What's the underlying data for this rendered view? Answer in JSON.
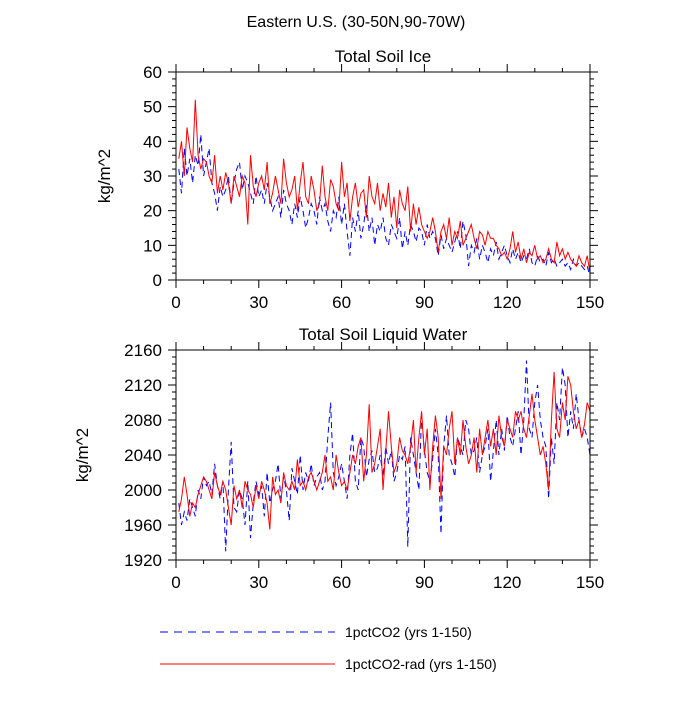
{
  "figure": {
    "title": "Eastern U.S. (30-50N,90-70W)"
  },
  "legend": {
    "placement": "bottom",
    "entries": [
      {
        "name": "1pctCO2 (yrs 1-150)",
        "color": "#0000ff",
        "style": "dashed"
      },
      {
        "name": "1pctCO2-rad (yrs 1-150)",
        "color": "#ff0000",
        "style": "solid"
      }
    ]
  },
  "chart_data": [
    {
      "type": "line",
      "title": "Total Soil Ice",
      "xlabel": "",
      "ylabel": "kg/m^2",
      "xlim": [
        0,
        150
      ],
      "ylim": [
        0,
        60
      ],
      "xticks": [
        0,
        30,
        60,
        90,
        120,
        150
      ],
      "yticks": [
        0,
        10,
        20,
        30,
        40,
        50,
        60
      ],
      "grid": false,
      "x": [
        1,
        2,
        3,
        4,
        5,
        6,
        7,
        8,
        9,
        10,
        11,
        12,
        13,
        14,
        15,
        16,
        17,
        18,
        19,
        20,
        21,
        22,
        23,
        24,
        25,
        26,
        27,
        28,
        29,
        30,
        31,
        32,
        33,
        34,
        35,
        36,
        37,
        38,
        39,
        40,
        41,
        42,
        43,
        44,
        45,
        46,
        47,
        48,
        49,
        50,
        51,
        52,
        53,
        54,
        55,
        56,
        57,
        58,
        59,
        60,
        61,
        62,
        63,
        64,
        65,
        66,
        67,
        68,
        69,
        70,
        71,
        72,
        73,
        74,
        75,
        76,
        77,
        78,
        79,
        80,
        81,
        82,
        83,
        84,
        85,
        86,
        87,
        88,
        89,
        90,
        91,
        92,
        93,
        94,
        95,
        96,
        97,
        98,
        99,
        100,
        101,
        102,
        103,
        104,
        105,
        106,
        107,
        108,
        109,
        110,
        111,
        112,
        113,
        114,
        115,
        116,
        117,
        118,
        119,
        120,
        121,
        122,
        123,
        124,
        125,
        126,
        127,
        128,
        129,
        130,
        131,
        132,
        133,
        134,
        135,
        136,
        137,
        138,
        139,
        140,
        141,
        142,
        143,
        144,
        145,
        146,
        147,
        148,
        149,
        150
      ],
      "series": [
        {
          "name": "1pctCO2 (yrs 1-150)",
          "color": "#0000ff",
          "style": "dashed",
          "values": [
            32,
            25,
            38,
            30,
            35,
            28,
            36,
            33,
            42,
            30,
            34,
            38,
            28,
            25,
            20,
            27,
            24,
            26,
            30,
            22,
            28,
            32,
            34,
            26,
            30,
            28,
            25,
            22,
            30,
            24,
            26,
            22,
            28,
            24,
            20,
            22,
            24,
            18,
            26,
            22,
            20,
            16,
            22,
            18,
            24,
            20,
            15,
            18,
            22,
            20,
            16,
            24,
            20,
            22,
            17,
            14,
            20,
            18,
            24,
            16,
            22,
            14,
            7,
            18,
            14,
            20,
            12,
            16,
            22,
            14,
            18,
            10,
            16,
            14,
            18,
            12,
            10,
            16,
            14,
            12,
            18,
            9,
            14,
            10,
            16,
            14,
            11,
            15,
            14,
            10,
            16,
            12,
            14,
            12,
            7,
            13,
            9,
            12,
            10,
            8,
            11,
            14,
            9,
            17,
            13,
            4,
            10,
            8,
            12,
            6,
            10,
            8,
            5,
            9,
            7,
            11,
            6,
            8,
            10,
            7,
            5,
            9,
            6,
            8,
            5,
            7,
            6,
            9,
            5,
            4,
            7,
            5,
            6,
            4,
            8,
            5,
            6,
            4,
            5,
            6,
            4,
            5,
            3,
            6,
            4,
            5,
            4,
            3,
            4,
            1
          ]
        },
        {
          "name": "1pctCO2-rad (yrs 1-150)",
          "color": "#ff0000",
          "style": "solid",
          "values": [
            35,
            40,
            30,
            44,
            38,
            34,
            52,
            36,
            32,
            35,
            34,
            30,
            28,
            36,
            25,
            30,
            26,
            31,
            28,
            22,
            30,
            27,
            24,
            30,
            28,
            16,
            36,
            27,
            24,
            28,
            30,
            26,
            34,
            22,
            25,
            30,
            26,
            22,
            35,
            28,
            24,
            26,
            30,
            20,
            28,
            34,
            24,
            22,
            30,
            26,
            20,
            22,
            33,
            24,
            20,
            29,
            27,
            22,
            20,
            34,
            24,
            28,
            17,
            24,
            28,
            21,
            25,
            26,
            18,
            30,
            24,
            22,
            28,
            20,
            25,
            21,
            28,
            18,
            24,
            15,
            26,
            22,
            20,
            27,
            14,
            22,
            16,
            21,
            16,
            14,
            12,
            14,
            18,
            14,
            8,
            14,
            16,
            12,
            18,
            10,
            14,
            12,
            17,
            10,
            12,
            14,
            16,
            12,
            9,
            14,
            13,
            10,
            14,
            12,
            12,
            10,
            9,
            7,
            8,
            6,
            9,
            14,
            8,
            11,
            6,
            9,
            5,
            8,
            7,
            10,
            6,
            7,
            5,
            6,
            9,
            6,
            5,
            11,
            7,
            9,
            6,
            8,
            6,
            5,
            4,
            7,
            5,
            4,
            7,
            2
          ]
        }
      ]
    },
    {
      "type": "line",
      "title": "Total Soil Liquid Water",
      "xlabel": "",
      "ylabel": "kg/m^2",
      "xlim": [
        0,
        150
      ],
      "ylim": [
        1920,
        2160
      ],
      "xticks": [
        0,
        30,
        60,
        90,
        120,
        150
      ],
      "yticks": [
        1920,
        1960,
        2000,
        2040,
        2080,
        2120,
        2160
      ],
      "grid": false,
      "x": [
        1,
        2,
        3,
        4,
        5,
        6,
        7,
        8,
        9,
        10,
        11,
        12,
        13,
        14,
        15,
        16,
        17,
        18,
        19,
        20,
        21,
        22,
        23,
        24,
        25,
        26,
        27,
        28,
        29,
        30,
        31,
        32,
        33,
        34,
        35,
        36,
        37,
        38,
        39,
        40,
        41,
        42,
        43,
        44,
        45,
        46,
        47,
        48,
        49,
        50,
        51,
        52,
        53,
        54,
        55,
        56,
        57,
        58,
        59,
        60,
        61,
        62,
        63,
        64,
        65,
        66,
        67,
        68,
        69,
        70,
        71,
        72,
        73,
        74,
        75,
        76,
        77,
        78,
        79,
        80,
        81,
        82,
        83,
        84,
        85,
        86,
        87,
        88,
        89,
        90,
        91,
        92,
        93,
        94,
        95,
        96,
        97,
        98,
        99,
        100,
        101,
        102,
        103,
        104,
        105,
        106,
        107,
        108,
        109,
        110,
        111,
        112,
        113,
        114,
        115,
        116,
        117,
        118,
        119,
        120,
        121,
        122,
        123,
        124,
        125,
        126,
        127,
        128,
        129,
        130,
        131,
        132,
        133,
        134,
        135,
        136,
        137,
        138,
        139,
        140,
        141,
        142,
        143,
        144,
        145,
        146,
        147,
        148,
        149,
        150
      ],
      "series": [
        {
          "name": "1pctCO2 (yrs 1-150)",
          "color": "#0000ff",
          "style": "dashed",
          "values": [
            1985,
            1960,
            1975,
            1965,
            1990,
            1980,
            1970,
            2000,
            1990,
            2015,
            2005,
            2010,
            1995,
            2030,
            2005,
            1990,
            2010,
            1930,
            2000,
            2055,
            1980,
            1975,
            2000,
            1990,
            1960,
            2010,
            1945,
            1985,
            2010,
            1995,
            2005,
            1970,
            2020,
            1985,
            2000,
            2010,
            2030,
            1990,
            2015,
            2000,
            1965,
            2025,
            2010,
            1995,
            2040,
            2000,
            2020,
            2010,
            2030,
            2005,
            2015,
            2020,
            2000,
            2010,
            2060,
            2100,
            2020,
            2005,
            2015,
            2030,
            2010,
            1990,
            2040,
            2065,
            2010,
            2000,
            2060,
            2050,
            2015,
            2035,
            2045,
            2020,
            2025,
            2040,
            2015,
            2050,
            2030,
            2045,
            2010,
            2020,
            2040,
            2035,
            2050,
            1935,
            2060,
            2040,
            2020,
            2000,
            2085,
            2045,
            2020,
            2010,
            2035,
            2070,
            2040,
            1950,
            2050,
            2085,
            2040,
            2030,
            2015,
            2060,
            2050,
            2040,
            2080,
            2070,
            2040,
            2045,
            2060,
            2020,
            2040,
            2050,
            2070,
            2010,
            2045,
            2080,
            2040,
            2070,
            2045,
            2085,
            2060,
            2050,
            2070,
            2090,
            2040,
            2080,
            2148,
            2070,
            2060,
            2100,
            2120,
            2080,
            2060,
            2050,
            1990,
            2060,
            2030,
            2100,
            2080,
            2140,
            2120,
            2060,
            2090,
            2070,
            2110,
            2080,
            2060,
            2070,
            2060,
            2040
          ]
        },
        {
          "name": "1pctCO2-rad (yrs 1-150)",
          "color": "#ff0000",
          "style": "solid",
          "values": [
            1975,
            1990,
            2015,
            1995,
            1970,
            1985,
            1980,
            1995,
            2005,
            2015,
            2010,
            2000,
            1990,
            2020,
            2005,
            1995,
            2010,
            2000,
            1980,
            1960,
            2005,
            1990,
            2000,
            1980,
            2010,
            2000,
            1995,
            1980,
            2005,
            1990,
            2010,
            2000,
            1985,
            1955,
            2015,
            1995,
            2000,
            1985,
            2020,
            2005,
            2000,
            2010,
            2000,
            2035,
            2005,
            2010,
            2000,
            2015,
            2020,
            2010,
            2000,
            2010,
            2020,
            2040,
            2010,
            2015,
            2000,
            2040,
            2020,
            2005,
            2010,
            2000,
            2020,
            2040,
            2030,
            2050,
            2060,
            2010,
            2040,
            2098,
            2020,
            2030,
            2050,
            2070,
            2000,
            2045,
            2090,
            2050,
            2020,
            2030,
            2060,
            2045,
            2040,
            2030,
            2050,
            2080,
            2020,
            2060,
            2090,
            2040,
            2070,
            2000,
            2050,
            2085,
            2060,
            1990,
            2050,
            2040,
            2070,
            2090,
            2030,
            2060,
            2040,
            2080,
            2050,
            2030,
            2040,
            2060,
            2020,
            2070,
            2040,
            2060,
            2080,
            2050,
            2070,
            2040,
            2085,
            2060,
            2050,
            2080,
            2070,
            2060,
            2090,
            2080,
            2090,
            2070,
            2060,
            2085,
            2110,
            2080,
            2060,
            2040,
            2050,
            2030,
            2000,
            2080,
            2135,
            2070,
            2060,
            2100,
            2080,
            2130,
            2120,
            2090,
            2070,
            2080,
            2060,
            2075,
            2100,
            2090
          ]
        }
      ]
    }
  ]
}
